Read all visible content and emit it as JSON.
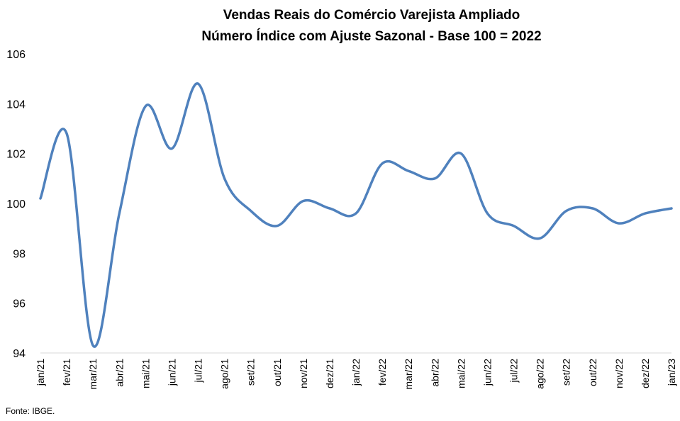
{
  "chart_data": {
    "type": "line",
    "title": "Vendas Reais do Comércio Varejista Ampliado",
    "subtitle": "Número Índice com Ajuste Sazonal - Base 100 = 2022",
    "xlabel": "",
    "ylabel": "",
    "ylim": [
      94,
      106
    ],
    "yticks": [
      94,
      96,
      98,
      100,
      102,
      104,
      106
    ],
    "grid": false,
    "legend": "none",
    "line_color": "#4f81bd",
    "categories": [
      "jan/21",
      "fev/21",
      "mar/21",
      "abr/21",
      "mai/21",
      "jun/21",
      "jul/21",
      "ago/21",
      "set/21",
      "out/21",
      "nov/21",
      "dez/21",
      "jan/22",
      "fev/22",
      "mar/22",
      "abr/22",
      "mai/22",
      "jun/22",
      "jul/22",
      "ago/22",
      "set/22",
      "out/22",
      "nov/22",
      "dez/22",
      "jan/23"
    ],
    "series": [
      {
        "values": [
          100.2,
          102.8,
          94.3,
          99.6,
          103.9,
          102.2,
          104.8,
          101.0,
          99.7,
          99.1,
          100.1,
          99.8,
          99.6,
          101.6,
          101.3,
          101.0,
          102.0,
          99.6,
          99.1,
          98.6,
          99.7,
          99.8,
          99.2,
          99.6,
          99.8
        ]
      }
    ]
  },
  "source": "Fonte: IBGE."
}
